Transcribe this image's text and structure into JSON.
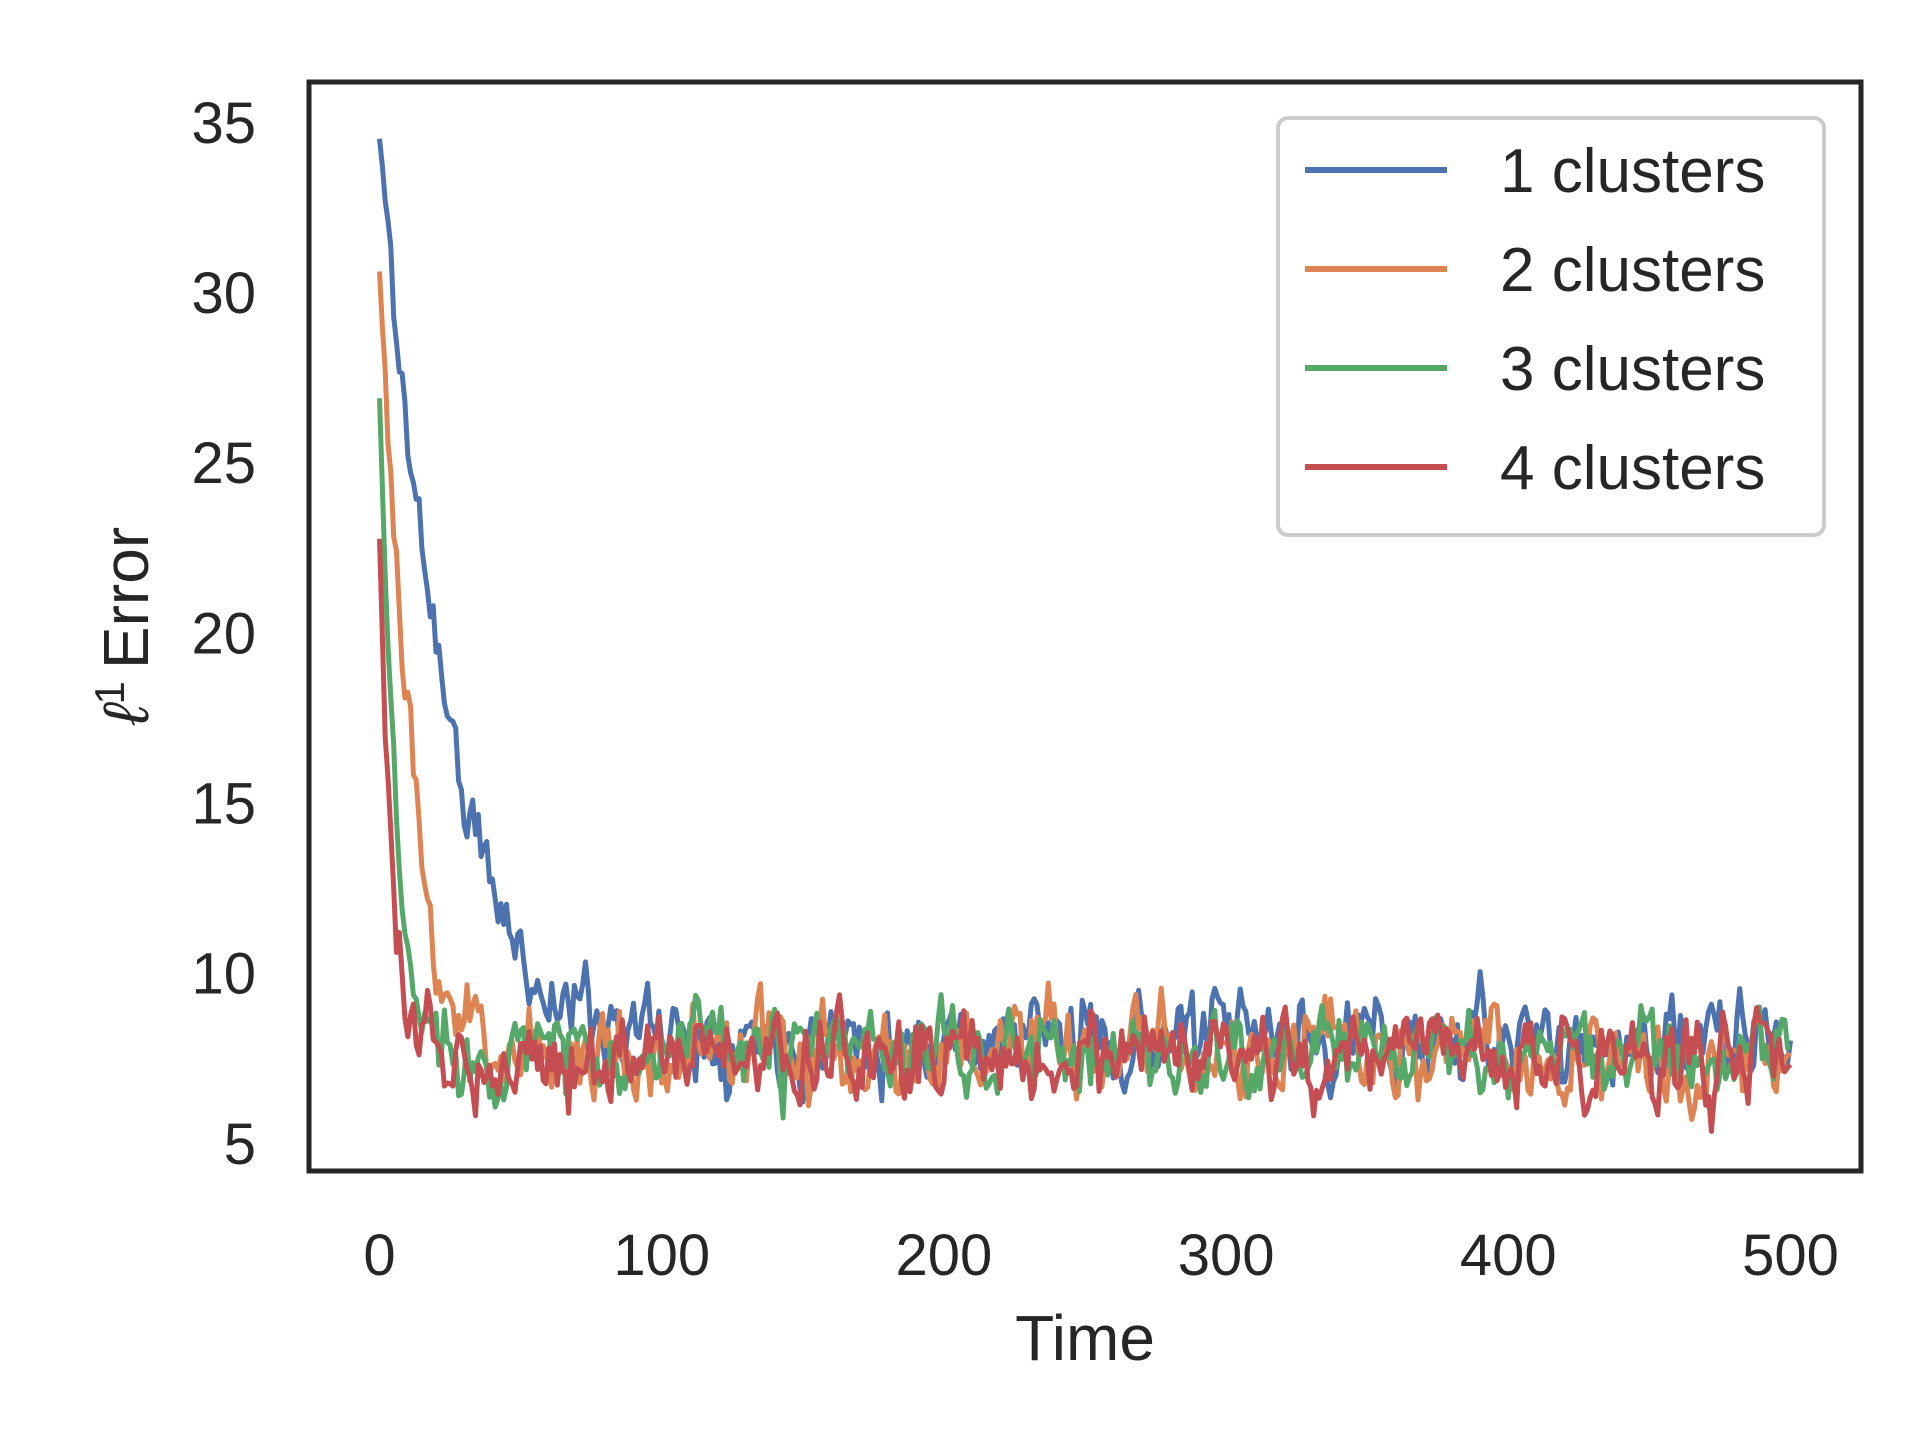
{
  "chart_data": {
    "type": "line",
    "xlabel": "Time",
    "ylabel_symbol": "ℓ",
    "ylabel_superscript": "1",
    "ylabel_text": "Error",
    "xlim": [
      -25,
      525
    ],
    "ylim": [
      4.2,
      36.2
    ],
    "xticks": [
      0,
      100,
      200,
      300,
      400,
      500
    ],
    "xtick_labels": [
      "0",
      "100",
      "200",
      "300",
      "400",
      "500"
    ],
    "yticks": [
      5,
      10,
      15,
      20,
      25,
      30,
      35
    ],
    "ytick_labels": [
      "5",
      "10",
      "15",
      "20",
      "25",
      "30",
      "35"
    ],
    "grid": false,
    "legend_position": "top-right",
    "series": [
      {
        "name": "1 clusters",
        "color": "#4C72B0",
        "start": 34.5,
        "tau": 18,
        "plateau": 7.9,
        "noise": 0.55,
        "seed": 11,
        "x_key": [
          0,
          10,
          20,
          30,
          40,
          50,
          60,
          80,
          100,
          500
        ],
        "y_key": [
          34.5,
          25.5,
          20,
          15,
          12.5,
          10.5,
          9.4,
          8.8,
          8.3,
          7.9
        ]
      },
      {
        "name": "2 clusters",
        "color": "#DD8452",
        "start": 30.8,
        "tau": 6,
        "plateau": 7.6,
        "noise": 0.6,
        "seed": 23,
        "x_key": [
          0,
          5,
          10,
          15,
          20,
          25,
          30,
          40,
          60,
          500
        ],
        "y_key": [
          30.8,
          23,
          17,
          12.5,
          10.5,
          9.2,
          8.6,
          8.0,
          7.7,
          7.6
        ]
      },
      {
        "name": "3 clusters",
        "color": "#55A868",
        "start": 26.9,
        "tau": 4,
        "plateau": 7.6,
        "noise": 0.55,
        "seed": 37,
        "x_key": [
          0,
          3,
          6,
          9,
          12,
          15,
          20,
          30,
          500
        ],
        "y_key": [
          26.9,
          19,
          14,
          11,
          9.5,
          8.7,
          8.1,
          7.7,
          7.6
        ]
      },
      {
        "name": "4 clusters",
        "color": "#C44E52",
        "start": 22.9,
        "tau": 3,
        "plateau": 7.5,
        "noise": 0.55,
        "seed": 53,
        "x_key": [
          0,
          2,
          4,
          6,
          8,
          10,
          15,
          25,
          500
        ],
        "y_key": [
          22.9,
          17,
          12.5,
          10.5,
          9.5,
          8.8,
          8.0,
          7.6,
          7.5
        ]
      }
    ]
  }
}
